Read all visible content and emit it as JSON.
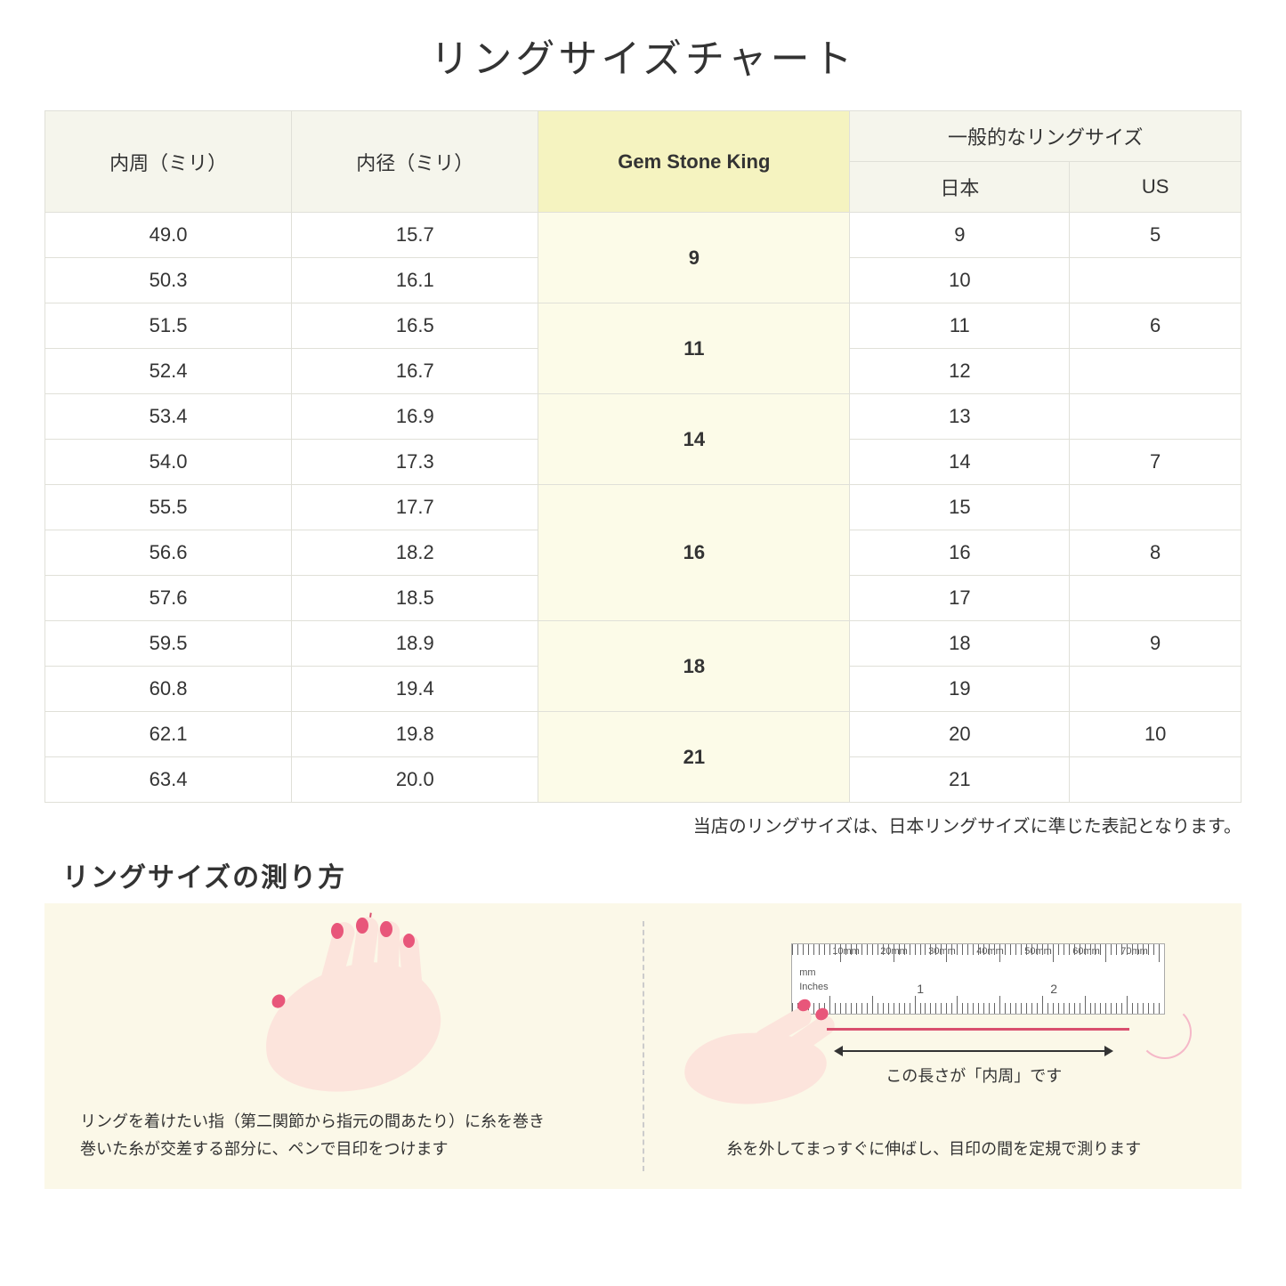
{
  "title": "リングサイズチャート",
  "headers": {
    "circumference": "内周（ミリ）",
    "diameter": "内径（ミリ）",
    "gsk": "Gem Stone King",
    "general": "一般的なリングサイズ",
    "japan": "日本",
    "us": "US"
  },
  "rows": [
    {
      "c": "49.0",
      "d": "15.7",
      "jp": "9",
      "us": "5"
    },
    {
      "c": "50.3",
      "d": "16.1",
      "jp": "10",
      "us": ""
    },
    {
      "c": "51.5",
      "d": "16.5",
      "jp": "11",
      "us": "6"
    },
    {
      "c": "52.4",
      "d": "16.7",
      "jp": "12",
      "us": ""
    },
    {
      "c": "53.4",
      "d": "16.9",
      "jp": "13",
      "us": ""
    },
    {
      "c": "54.0",
      "d": "17.3",
      "jp": "14",
      "us": "7"
    },
    {
      "c": "55.5",
      "d": "17.7",
      "jp": "15",
      "us": ""
    },
    {
      "c": "56.6",
      "d": "18.2",
      "jp": "16",
      "us": "8"
    },
    {
      "c": "57.6",
      "d": "18.5",
      "jp": "17",
      "us": ""
    },
    {
      "c": "59.5",
      "d": "18.9",
      "jp": "18",
      "us": "9"
    },
    {
      "c": "60.8",
      "d": "19.4",
      "jp": "19",
      "us": ""
    },
    {
      "c": "62.1",
      "d": "19.8",
      "jp": "20",
      "us": "10"
    },
    {
      "c": "63.4",
      "d": "20.0",
      "jp": "21",
      "us": ""
    }
  ],
  "gsk_groups": [
    {
      "label": "9",
      "span": 2
    },
    {
      "label": "11",
      "span": 2
    },
    {
      "label": "14",
      "span": 2
    },
    {
      "label": "16",
      "span": 3
    },
    {
      "label": "18",
      "span": 2
    },
    {
      "label": "21",
      "span": 2
    }
  ],
  "note": "当店のリングサイズは、日本リングサイズに準じた表記となります。",
  "subtitle": "リングサイズの測り方",
  "step1_line1": "リングを着けたい指（第二関節から指元の間あたり）に糸を巻き",
  "step1_line2": "巻いた糸が交差する部分に、ペンで目印をつけます",
  "step2_arrow": "この長さが「内周」です",
  "step2_text": "糸を外してまっすぐに伸ばし、目印の間を定規で測ります",
  "ruler": {
    "mm_label": "mm",
    "inches_label": "Inches",
    "mm_marks": [
      "10mm",
      "20mm",
      "30mm",
      "40mm",
      "50mm",
      "60mm",
      "70mm"
    ],
    "inch_marks": [
      "1",
      "2"
    ]
  },
  "colors": {
    "header_bg": "#f5f5ec",
    "gsk_header_bg": "#f5f3c0",
    "gsk_cell_bg": "#fcfbe8",
    "border": "#e0e0d8",
    "panel_bg": "#fbf8e8",
    "skin": "#fce4dc",
    "nail": "#e8567a",
    "thread": "#d94f6e"
  }
}
